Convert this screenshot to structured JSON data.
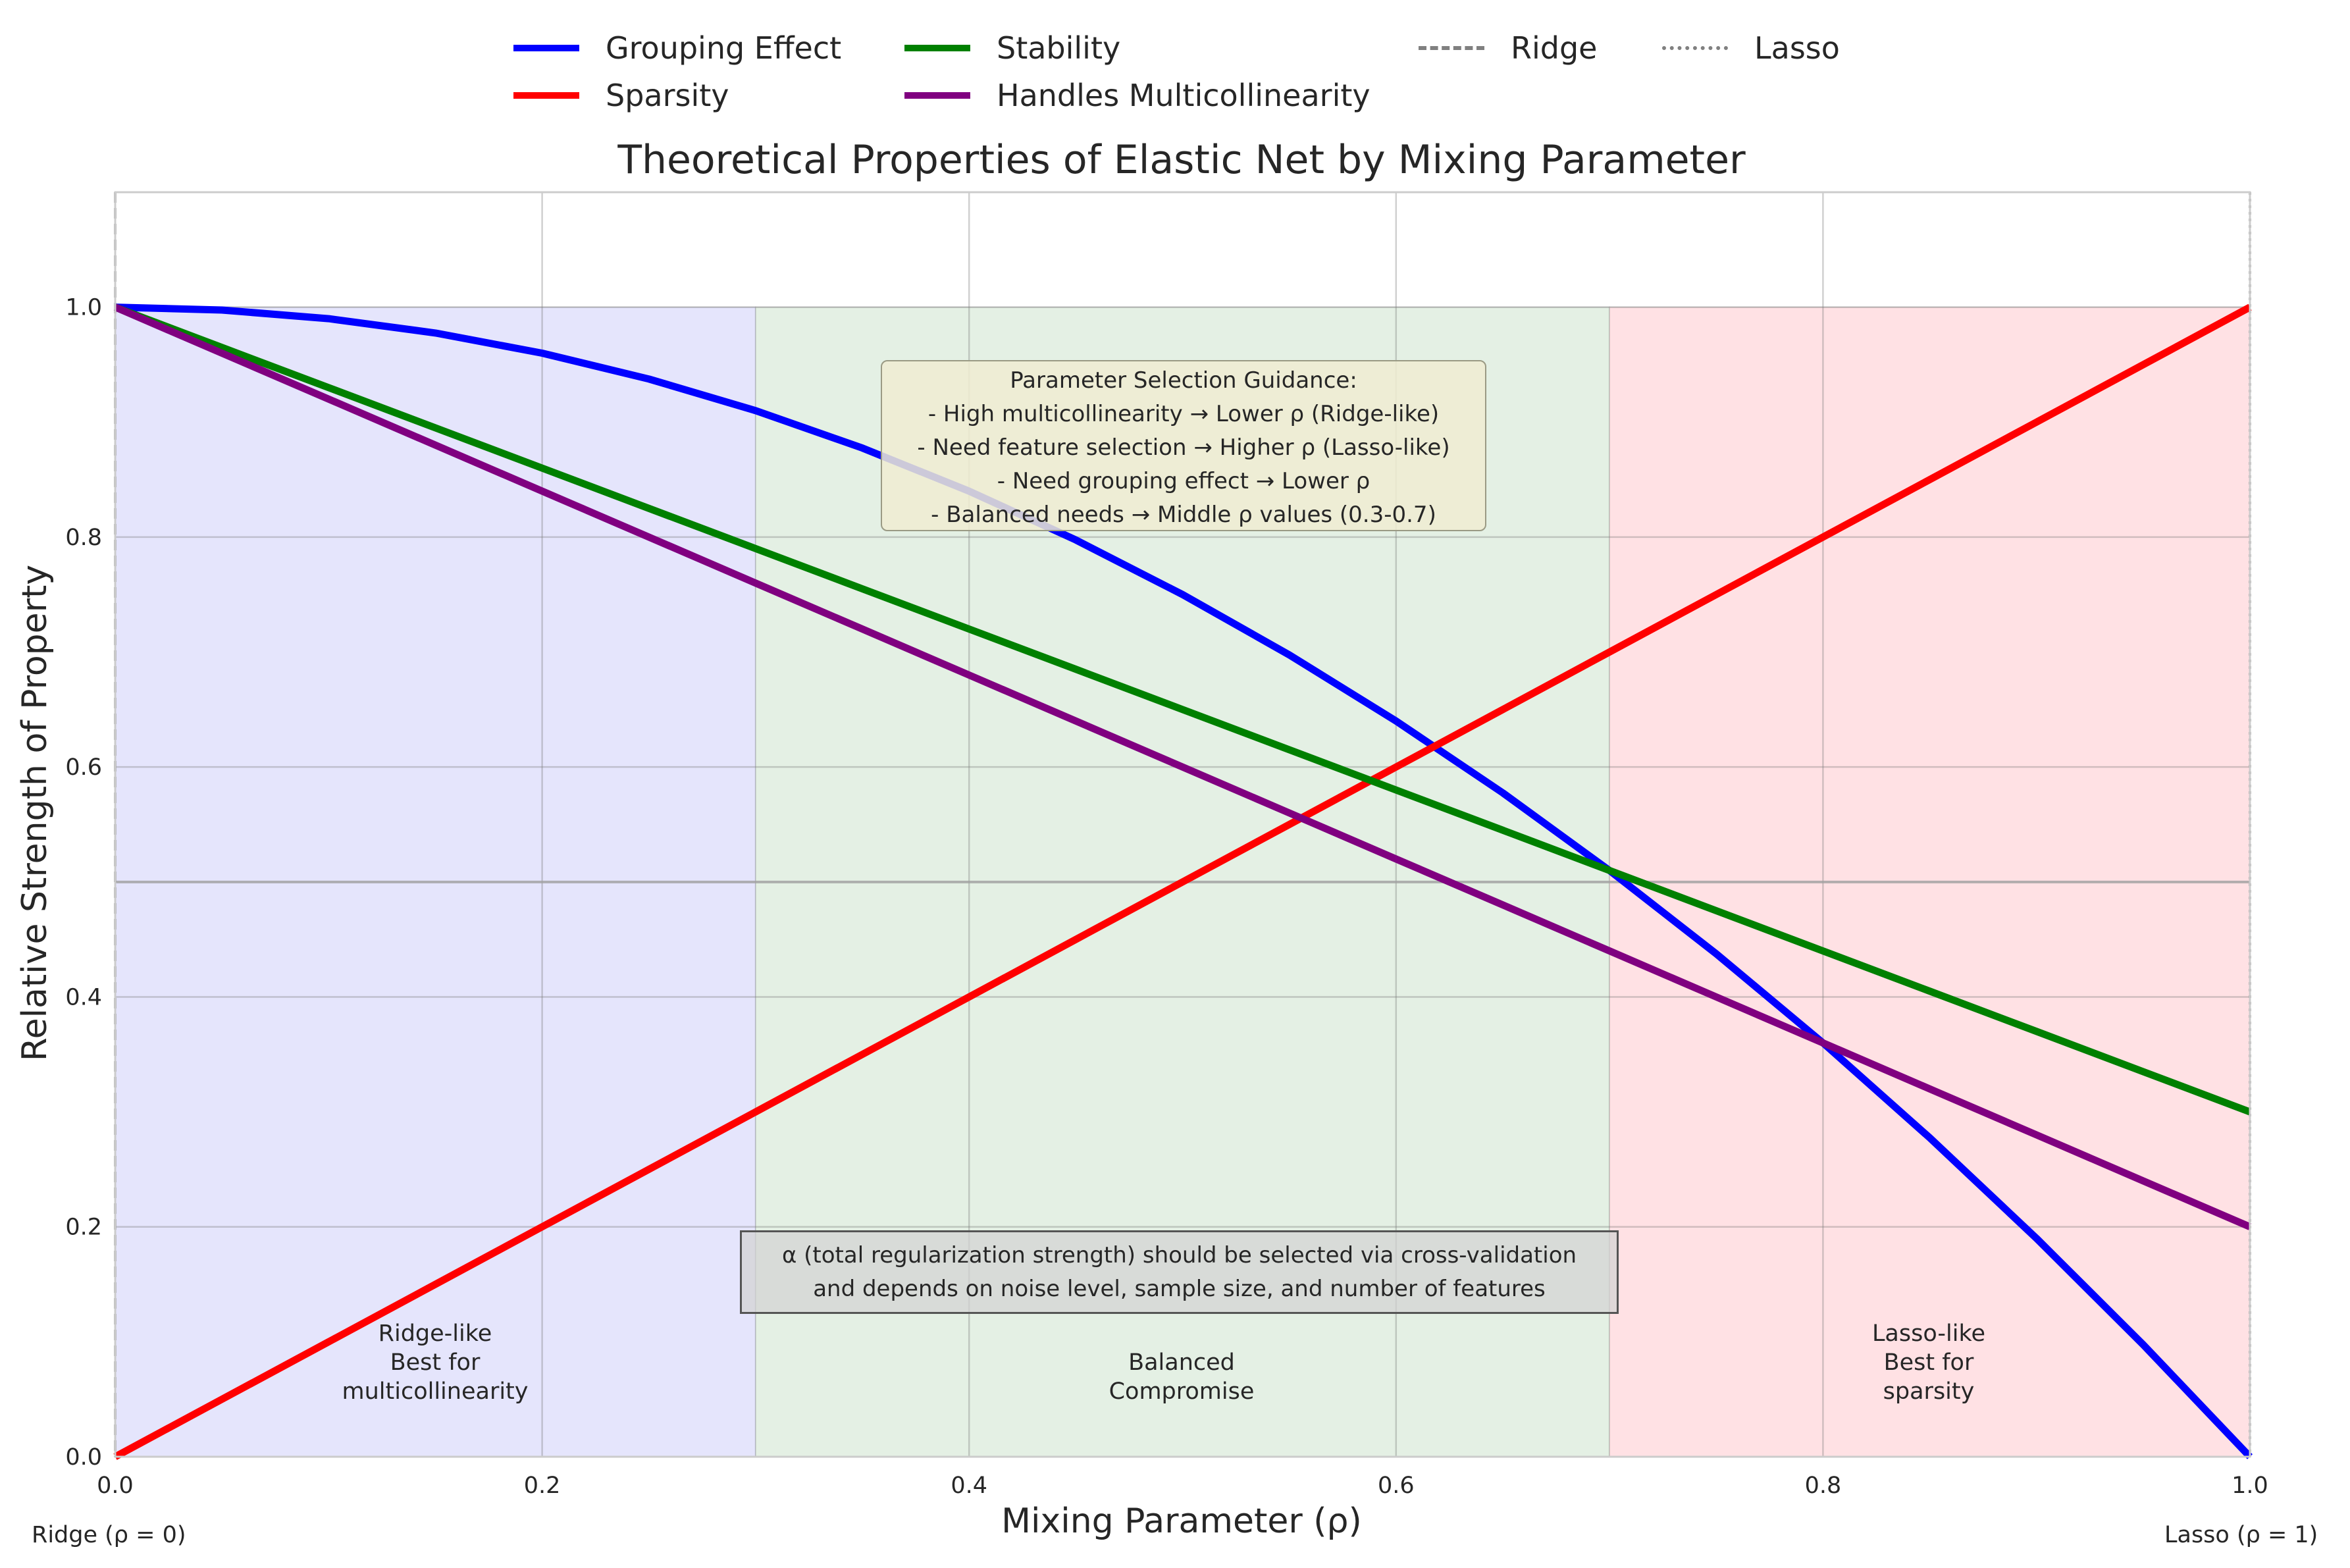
{
  "chart_data": {
    "type": "line",
    "title": "Theoretical Properties of Elastic Net by Mixing Parameter",
    "xlabel": "Mixing Parameter (ρ)",
    "ylabel": "Relative Strength of Property",
    "xlim": [
      0,
      1
    ],
    "ylim": [
      0,
      1.1
    ],
    "grid": true,
    "x_ticks": [
      "0.0",
      "0.2",
      "0.4",
      "0.6",
      "0.8",
      "1.0"
    ],
    "y_ticks": [
      "0.0",
      "0.2",
      "0.4",
      "0.6",
      "0.8",
      "1.0"
    ],
    "x_tick_values": [
      0,
      0.2,
      0.4,
      0.6,
      0.8,
      1.0
    ],
    "y_tick_values": [
      0,
      0.2,
      0.4,
      0.6,
      0.8,
      1.0
    ],
    "legend_position": "top-center",
    "x": [
      0.0,
      0.05,
      0.1,
      0.15,
      0.2,
      0.25,
      0.3,
      0.35,
      0.4,
      0.45,
      0.5,
      0.55,
      0.6,
      0.65,
      0.7,
      0.75,
      0.8,
      0.85,
      0.9,
      0.95,
      1.0
    ],
    "series": [
      {
        "name": "Grouping Effect",
        "color": "#0000ff",
        "values": [
          1.0,
          0.9975,
          0.99,
          0.9775,
          0.96,
          0.9375,
          0.91,
          0.8775,
          0.84,
          0.7975,
          0.75,
          0.6975,
          0.64,
          0.5775,
          0.51,
          0.4375,
          0.36,
          0.2775,
          0.19,
          0.0975,
          0.0
        ]
      },
      {
        "name": "Sparsity",
        "color": "#ff0000",
        "values": [
          0.0,
          0.05,
          0.1,
          0.15,
          0.2,
          0.25,
          0.3,
          0.35,
          0.4,
          0.45,
          0.5,
          0.55,
          0.6,
          0.65,
          0.7,
          0.75,
          0.8,
          0.85,
          0.9,
          0.95,
          1.0
        ]
      },
      {
        "name": "Stability",
        "color": "#008000",
        "values": [
          1.0,
          0.965,
          0.93,
          0.895,
          0.86,
          0.825,
          0.79,
          0.755,
          0.72,
          0.685,
          0.65,
          0.615,
          0.58,
          0.545,
          0.51,
          0.475,
          0.44,
          0.405,
          0.37,
          0.335,
          0.3
        ]
      },
      {
        "name": "Handles Multicollinearity",
        "color": "#800080",
        "values": [
          1.0,
          0.96,
          0.92,
          0.88,
          0.84,
          0.8,
          0.76,
          0.72,
          0.68,
          0.64,
          0.6,
          0.56,
          0.52,
          0.48,
          0.44,
          0.4,
          0.36,
          0.32,
          0.28,
          0.24,
          0.2
        ]
      }
    ],
    "reference_lines": [
      {
        "name": "Ridge",
        "style": "dashed",
        "color": "#808080",
        "x": 0.0
      },
      {
        "name": "Lasso",
        "style": "dotted",
        "color": "#808080",
        "x": 1.0
      }
    ],
    "horizontal_line": {
      "y": 0.5,
      "color": "#a0a0a0"
    },
    "regions": [
      {
        "x_range": [
          0.0,
          0.3
        ],
        "color": "#e5e5fc",
        "label_lines": [
          "Ridge-like",
          "Best for",
          "multicollinearity"
        ]
      },
      {
        "x_range": [
          0.3,
          0.7
        ],
        "color": "#e4f0e4",
        "label_lines": [
          "Balanced",
          "Compromise"
        ]
      },
      {
        "x_range": [
          0.7,
          1.0
        ],
        "color": "#ffe1e4",
        "label_lines": [
          "Lasso-like",
          "Best for",
          "sparsity"
        ]
      }
    ],
    "region_top": 1.0,
    "annotations": {
      "guidance_lines": [
        "Parameter Selection Guidance:",
        "- High multicollinearity → Lower ρ (Ridge-like)",
        "- Need feature selection → Higher ρ (Lasso-like)",
        "- Need grouping effect → Lower ρ",
        "- Balanced needs → Middle ρ values (0.3-0.7)"
      ],
      "alpha_note_lines": [
        "α (total regularization strength) should be selected via cross-validation",
        "and depends on noise level, sample size, and number of features"
      ],
      "ridge_corner": "Ridge (ρ = 0)",
      "lasso_corner": "Lasso (ρ = 1)"
    }
  }
}
